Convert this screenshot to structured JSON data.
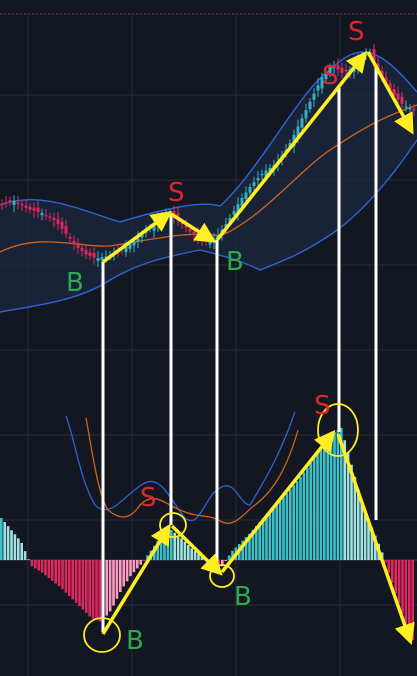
{
  "chart_data": {
    "type": "candlestick",
    "colors": {
      "background": "#131722",
      "grid": "#262b36",
      "up_candle": "#36b3c2",
      "down_candle": "#e0275f",
      "band_line": "#2f63d6",
      "band_fill": "#1b2a44",
      "mid_line": "#d0641a",
      "hist_up": "#3cc1c9",
      "hist_up_light": "#9fe3e3",
      "hist_down": "#e0275f",
      "hist_down_light": "#ff9bc0",
      "arrow": "#ffee22",
      "connector": "#ffffff",
      "sell_label": "#e0262b",
      "buy_label": "#2ea94e"
    },
    "signals": [
      {
        "text": "B",
        "kind": "buy"
      },
      {
        "text": "S",
        "kind": "sell"
      },
      {
        "text": "B",
        "kind": "buy"
      },
      {
        "text": "S",
        "kind": "sell"
      },
      {
        "text": "S",
        "kind": "sell"
      },
      {
        "text": "B",
        "kind": "buy"
      },
      {
        "text": "S",
        "kind": "sell"
      },
      {
        "text": "B",
        "kind": "buy"
      },
      {
        "text": "S",
        "kind": "sell"
      }
    ],
    "price_path": [
      {
        "x": 0,
        "close": 62
      },
      {
        "x": 14,
        "close": 63
      },
      {
        "x": 28,
        "close": 61
      },
      {
        "x": 42,
        "close": 60
      },
      {
        "x": 56,
        "close": 58
      },
      {
        "x": 66,
        "close": 55
      },
      {
        "x": 76,
        "close": 52
      },
      {
        "x": 86,
        "close": 50
      },
      {
        "x": 96,
        "close": 49
      },
      {
        "x": 106,
        "close": 49.5
      },
      {
        "x": 120,
        "close": 51
      },
      {
        "x": 134,
        "close": 53
      },
      {
        "x": 148,
        "close": 56
      },
      {
        "x": 160,
        "close": 59
      },
      {
        "x": 170,
        "close": 60
      },
      {
        "x": 180,
        "close": 58
      },
      {
        "x": 192,
        "close": 55
      },
      {
        "x": 204,
        "close": 53
      },
      {
        "x": 216,
        "close": 54
      },
      {
        "x": 228,
        "close": 58
      },
      {
        "x": 240,
        "close": 63
      },
      {
        "x": 252,
        "close": 67
      },
      {
        "x": 264,
        "close": 70
      },
      {
        "x": 276,
        "close": 72
      },
      {
        "x": 288,
        "close": 76
      },
      {
        "x": 300,
        "close": 82
      },
      {
        "x": 312,
        "close": 88
      },
      {
        "x": 322,
        "close": 93
      },
      {
        "x": 332,
        "close": 96
      },
      {
        "x": 342,
        "close": 94
      },
      {
        "x": 352,
        "close": 95
      },
      {
        "x": 362,
        "close": 98
      },
      {
        "x": 370,
        "close": 99
      },
      {
        "x": 380,
        "close": 94
      },
      {
        "x": 392,
        "close": 89
      },
      {
        "x": 404,
        "close": 86
      },
      {
        "x": 416,
        "close": 85
      }
    ],
    "hist_path": [
      {
        "x": 0,
        "value": 42
      },
      {
        "x": 10,
        "value": 30
      },
      {
        "x": 20,
        "value": 18
      },
      {
        "x": 30,
        "value": -6
      },
      {
        "x": 40,
        "value": -12
      },
      {
        "x": 50,
        "value": -20
      },
      {
        "x": 60,
        "value": -28
      },
      {
        "x": 70,
        "value": -38
      },
      {
        "x": 80,
        "value": -48
      },
      {
        "x": 90,
        "value": -58
      },
      {
        "x": 100,
        "value": -62
      },
      {
        "x": 110,
        "value": -50
      },
      {
        "x": 120,
        "value": -30
      },
      {
        "x": 130,
        "value": -15
      },
      {
        "x": 140,
        "value": -4
      },
      {
        "x": 150,
        "value": 10
      },
      {
        "x": 160,
        "value": 24
      },
      {
        "x": 170,
        "value": 30
      },
      {
        "x": 180,
        "value": 22
      },
      {
        "x": 190,
        "value": 12
      },
      {
        "x": 200,
        "value": 4
      },
      {
        "x": 210,
        "value": -4
      },
      {
        "x": 220,
        "value": -8
      },
      {
        "x": 230,
        "value": 8
      },
      {
        "x": 240,
        "value": 18
      },
      {
        "x": 250,
        "value": 28
      },
      {
        "x": 260,
        "value": 40
      },
      {
        "x": 270,
        "value": 50
      },
      {
        "x": 280,
        "value": 60
      },
      {
        "x": 290,
        "value": 72
      },
      {
        "x": 300,
        "value": 84
      },
      {
        "x": 310,
        "value": 98
      },
      {
        "x": 320,
        "value": 112
      },
      {
        "x": 330,
        "value": 126
      },
      {
        "x": 340,
        "value": 132
      },
      {
        "x": 350,
        "value": 96
      },
      {
        "x": 360,
        "value": 60
      },
      {
        "x": 370,
        "value": 34
      },
      {
        "x": 380,
        "value": 10
      },
      {
        "x": 390,
        "value": -20
      },
      {
        "x": 400,
        "value": -50
      },
      {
        "x": 410,
        "value": -80
      }
    ]
  }
}
